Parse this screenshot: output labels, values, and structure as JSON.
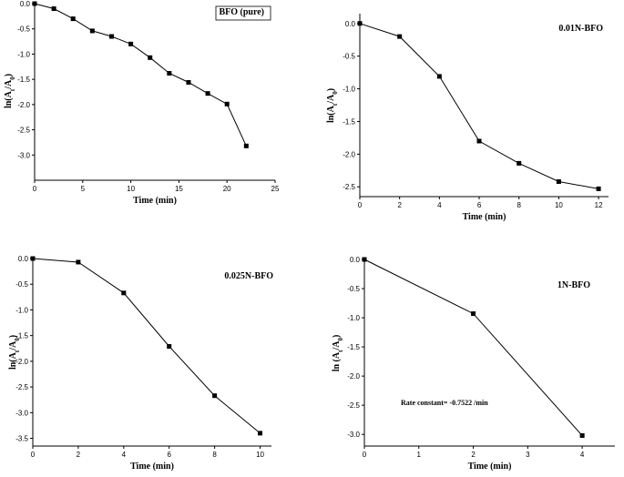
{
  "chart_data": [
    {
      "type": "line",
      "legend": "BFO (pure)",
      "legend_boxed": true,
      "xlabel": "Time (min)",
      "ylabel": {
        "prefix": "ln(A",
        "sub1": "t",
        "mid": "/A",
        "sub2": "0",
        "suffix": ")"
      },
      "xlim": [
        0,
        25
      ],
      "ylim": [
        -3.5,
        0.0
      ],
      "xticks": [
        0,
        5,
        10,
        15,
        20,
        25
      ],
      "yticks": [
        0.0,
        -0.5,
        -1.0,
        -1.5,
        -2.0,
        -2.5,
        -3.0
      ],
      "ytick_labels": [
        "0.0",
        "-0.5",
        "-1.0",
        "-1.5",
        "-2.0",
        "-2.5",
        "-3.0"
      ],
      "x": [
        0,
        2,
        4,
        6,
        8,
        10,
        12,
        14,
        16,
        18,
        20,
        22
      ],
      "y": [
        0.0,
        -0.1,
        -0.3,
        -0.54,
        -0.65,
        -0.8,
        -1.07,
        -1.38,
        -1.56,
        -1.78,
        -1.99,
        -2.82
      ],
      "markers": "square",
      "legend_position": "top-right"
    },
    {
      "type": "line",
      "legend": "0.01N-BFO",
      "legend_boxed": false,
      "xlabel": "Time (min)",
      "ylabel": {
        "prefix": "ln(A",
        "sub1": "t",
        "mid": "/A",
        "sub2": "0",
        "suffix": ")"
      },
      "xlim": [
        0,
        12.5
      ],
      "ylim": [
        -2.65,
        0.15
      ],
      "xticks": [
        0,
        2,
        4,
        6,
        8,
        10,
        12
      ],
      "yticks": [
        0.0,
        -0.5,
        -1.0,
        -1.5,
        -2.0,
        -2.5
      ],
      "ytick_labels": [
        "0.0",
        "-0.5",
        "-1.0",
        "-1.5",
        "-2.0",
        "-2.5"
      ],
      "x": [
        0,
        2,
        4,
        6,
        8,
        10,
        12
      ],
      "y": [
        0.0,
        -0.2,
        -0.81,
        -1.8,
        -2.14,
        -2.42,
        -2.53
      ],
      "markers": "square",
      "legend_position": "top-right"
    },
    {
      "type": "line",
      "legend": "0.025N-BFO",
      "legend_boxed": false,
      "xlabel": "Time (min)",
      "ylabel": {
        "prefix": "ln(A",
        "sub1": "t",
        "mid": "/A",
        "sub2": "0",
        "suffix": ")"
      },
      "xlim": [
        0,
        10.5
      ],
      "ylim": [
        -3.65,
        0.0
      ],
      "xticks": [
        0,
        2,
        4,
        6,
        8,
        10
      ],
      "yticks": [
        0.0,
        -0.5,
        -1.0,
        -1.5,
        -2.0,
        -2.5,
        -3.0,
        -3.5
      ],
      "ytick_labels": [
        "0.0",
        "-0.5",
        "-1.0",
        "-1.5",
        "-2.0",
        "-2.5",
        "-3.0",
        "-3.5"
      ],
      "x": [
        0,
        2,
        4,
        6,
        8,
        10
      ],
      "y": [
        0.0,
        -0.07,
        -0.67,
        -1.71,
        -2.67,
        -3.4
      ],
      "markers": "square",
      "legend_position": "top-right"
    },
    {
      "type": "line",
      "legend": "1N-BFO",
      "legend_boxed": false,
      "annotation": "Rate constant= -0.7522 /min",
      "xlabel": "Time (min)",
      "ylabel": {
        "prefix": "ln (A",
        "sub1": "t",
        "mid": "/A",
        "sub2": "0",
        "suffix": ")"
      },
      "xlim": [
        0,
        4.6
      ],
      "ylim": [
        -3.2,
        0.0
      ],
      "xticks": [
        0,
        1,
        2,
        3,
        4
      ],
      "yticks": [
        0.0,
        -0.5,
        -1.0,
        -1.5,
        -2.0,
        -2.5,
        -3.0
      ],
      "ytick_labels": [
        "0.0",
        "-0.5",
        "-1.0",
        "-1.5",
        "-2.0",
        "-2.5",
        "-3.0"
      ],
      "x": [
        0,
        2,
        4
      ],
      "y": [
        0.0,
        -0.93,
        -3.02
      ],
      "markers": "square",
      "legend_position": "top-right"
    }
  ]
}
